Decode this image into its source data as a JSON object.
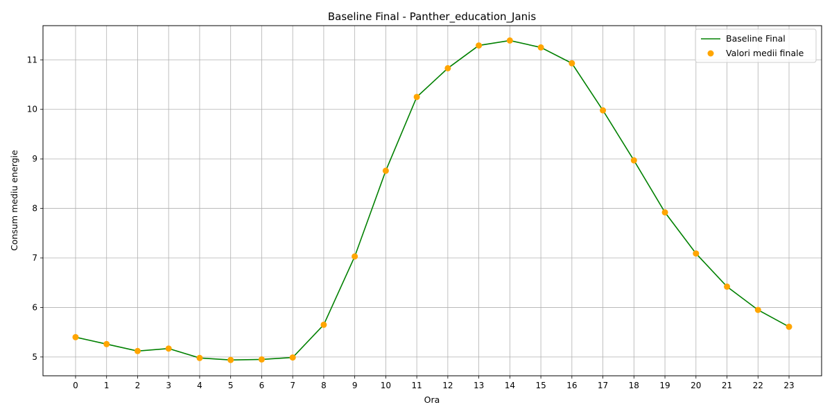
{
  "chart_data": {
    "type": "line",
    "title": "Baseline Final - Panther_education_Janis",
    "xlabel": "Ora",
    "ylabel": "Consum mediu energie",
    "x": [
      0,
      1,
      2,
      3,
      4,
      5,
      6,
      7,
      8,
      9,
      10,
      11,
      12,
      13,
      14,
      15,
      16,
      17,
      18,
      19,
      20,
      21,
      22,
      23
    ],
    "xlim": [
      -1.05,
      24.05
    ],
    "ylim": [
      4.62,
      11.69
    ],
    "yticks": [
      5,
      6,
      7,
      8,
      9,
      10,
      11
    ],
    "grid": true,
    "legend_position": "top-right",
    "series": [
      {
        "name": "Baseline Final",
        "kind": "line",
        "color": "#008000",
        "values": [
          5.4,
          5.26,
          5.12,
          5.17,
          4.98,
          4.94,
          4.95,
          4.99,
          5.65,
          7.03,
          8.76,
          10.25,
          10.83,
          11.29,
          11.39,
          11.25,
          10.93,
          9.98,
          8.97,
          7.92,
          7.09,
          6.42,
          5.95,
          5.61
        ]
      },
      {
        "name": "Valori medii finale",
        "kind": "scatter",
        "color": "#FFA500",
        "values": [
          5.4,
          5.26,
          5.12,
          5.17,
          4.98,
          4.94,
          4.95,
          4.99,
          5.65,
          7.03,
          8.76,
          10.25,
          10.83,
          11.29,
          11.39,
          11.25,
          10.93,
          9.98,
          8.97,
          7.92,
          7.09,
          6.42,
          5.95,
          5.61
        ]
      }
    ]
  }
}
